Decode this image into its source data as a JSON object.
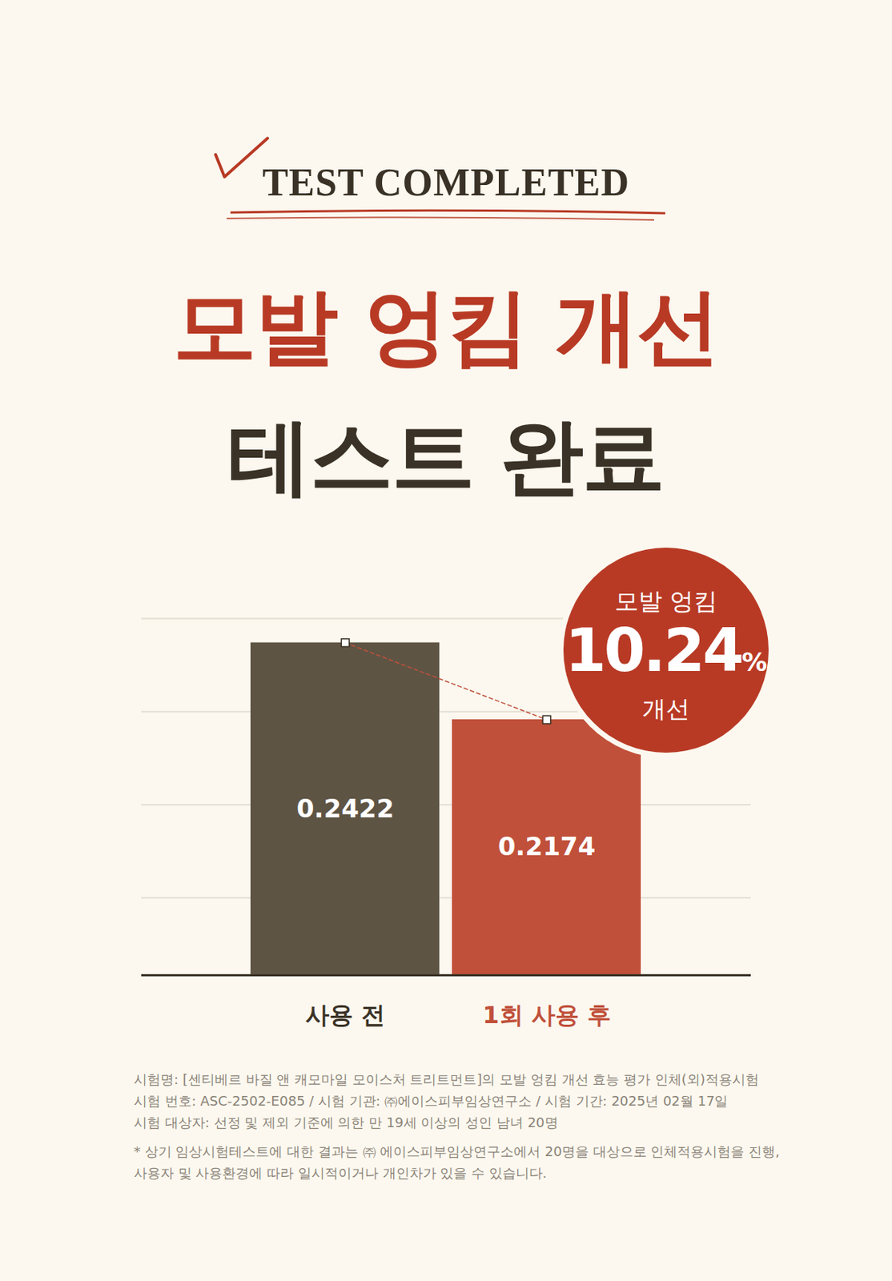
{
  "chart_data": {
    "type": "bar",
    "header": "TEST COMPLETED",
    "title": "모발 엉킴 개선",
    "subtitle": "테스트 완료",
    "categories": [
      "사용 전",
      "1회 사용 후"
    ],
    "values": [
      0.2422,
      0.2174
    ],
    "colors": [
      "#5e5444",
      "#c0503a"
    ],
    "ylim": [
      0.135,
      0.25
    ],
    "yticks": [
      0.16,
      0.19,
      0.22,
      0.25
    ],
    "grid": true,
    "data_labels": true,
    "tick_labels": "x",
    "annotations": [
      {
        "top": "모발 엉킴",
        "value": 10.24,
        "unit": "%",
        "bottom": "개선"
      }
    ],
    "notes": [
      "시험명: [센티베르 바질 앤 캐모마일 모이스처 트리트먼트]의 모발 엉킴 개선 효능 평가 인체(외)적용시험",
      "시험 번호: ASC-2502-E085 / 시험 기관: ㈜에이스피부임상연구소 / 시험 기간: 2025년 02월 17일",
      "시험 대상자: 선정 및 제외 기준에 의한 만 19세 이상의 성인 남녀 20명",
      "* 상기 임상시험테스트에 대한 결과는 ㈜ 에이스피부임상연구소에서  20명을 대상으로 인체적용시험을 진행,",
      "사용자 및 사용환경에 따라 일시적이거나 개인차가 있을 수 있습니다."
    ]
  }
}
